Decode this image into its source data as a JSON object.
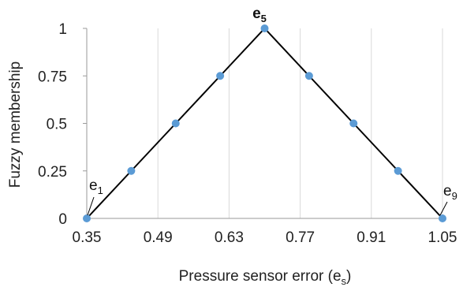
{
  "chart_data": {
    "type": "line",
    "xlabel": "Pressure sensor error (e",
    "xlabel_sub": "s",
    "xlabel_close": ")",
    "ylabel": "Fuzzy membership",
    "xlim": [
      0.35,
      1.05
    ],
    "ylim": [
      0,
      1
    ],
    "xticks": [
      "0.35",
      "0.49",
      "0.63",
      "0.77",
      "0.91",
      "1.05"
    ],
    "yticks": [
      "0",
      "0.25",
      "0.5",
      "0.75",
      "1"
    ],
    "series": [
      {
        "x": [
          0.35,
          0.4375,
          0.525,
          0.6125,
          0.7,
          0.7875,
          0.875,
          0.9625,
          1.05
        ],
        "y": [
          0,
          0.25,
          0.5,
          0.75,
          1,
          0.75,
          0.5,
          0.25,
          0
        ],
        "line_color": "#000000",
        "marker_color": "#5b9bd5"
      }
    ],
    "annotations": {
      "e1": {
        "base": "e",
        "sub": "1"
      },
      "e5": {
        "base": "e",
        "sub": "5"
      },
      "e9": {
        "base": "e",
        "sub": "9"
      }
    },
    "grid": "vertical",
    "grid_color": "#d9d9d9"
  }
}
